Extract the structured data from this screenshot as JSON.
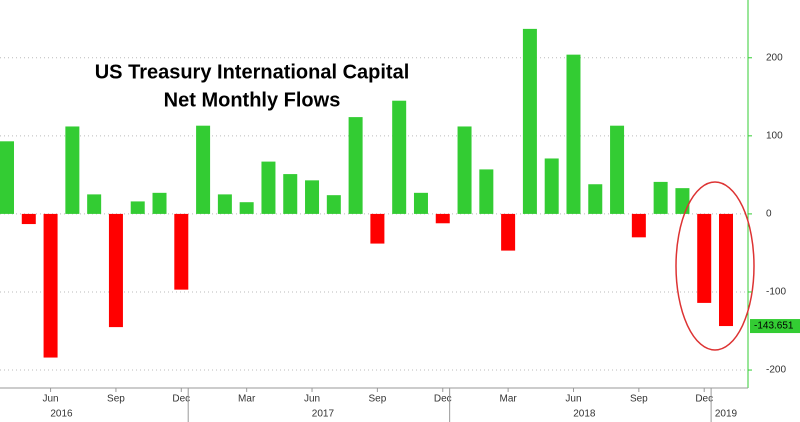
{
  "chart_data": {
    "type": "bar",
    "title": [
      "US Treasury International Capital",
      "Net Monthly Flows"
    ],
    "categories": [
      null,
      null,
      "Jun",
      null,
      null,
      "Sep",
      null,
      null,
      "Dec",
      null,
      null,
      "Mar",
      null,
      null,
      "Jun",
      null,
      null,
      "Sep",
      null,
      null,
      "Dec",
      null,
      null,
      "Mar",
      null,
      null,
      "Jun",
      null,
      null,
      "Sep",
      null,
      null,
      "Dec",
      null
    ],
    "years": [
      "2016",
      "2017",
      "2018",
      "2019"
    ],
    "values": [
      93,
      -13,
      -184,
      112,
      25,
      -145,
      16,
      27,
      -97,
      113,
      25,
      15,
      67,
      51,
      43,
      24,
      124,
      -38,
      145,
      27,
      -12,
      112,
      57,
      -47,
      237,
      71,
      204,
      38,
      113,
      -30,
      41,
      33,
      -114,
      -143.651
    ],
    "positive_color": "#33cc33",
    "negative_color": "#ff0000",
    "ylim": [
      -223,
      274
    ],
    "yticks": [
      -200,
      -100,
      0,
      100,
      200
    ],
    "grid": true
  }
}
